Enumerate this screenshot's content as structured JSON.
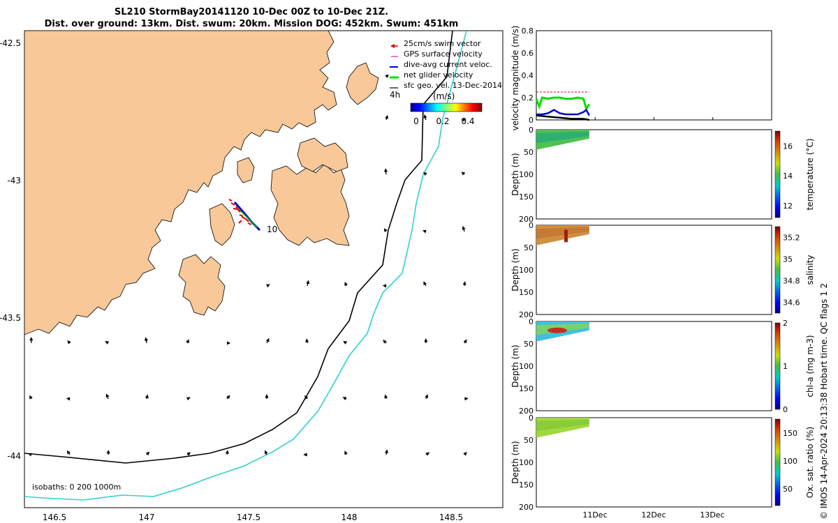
{
  "header": {
    "title_line1": "SL210 StormBay20141120 10-Dec 00Z to 10-Dec 21Z.",
    "title_line2": "Dist. over ground: 13km. Dist. swum: 20km. Mission DOG: 452km. Swum: 451km"
  },
  "map": {
    "legend": [
      {
        "label": "25cm/s swim vector",
        "color": "#e00000"
      },
      {
        "label": "GPS surface velocity",
        "color": "#e040e0"
      },
      {
        "label": "dive-avg current veloc.",
        "color": "#0000d0"
      },
      {
        "label": "net glider velocity",
        "color": "#00e000"
      },
      {
        "label": "sfc geo. vel. 13-Dec-2014",
        "color": "#000000"
      }
    ],
    "legend_extra": "4h",
    "colorbar_unit": "(m/s)",
    "colorbar_ticks": [
      "0",
      "0.2",
      "0.4"
    ],
    "x_ticks": [
      "146.5",
      "147",
      "147.5",
      "148",
      "148.5"
    ],
    "y_ticks": [
      "-42.5",
      "-43",
      "-43.5",
      "-44"
    ],
    "glider_label": "10",
    "isobath_note": "isobaths: 0   200  1000m",
    "land_color": "#f8c898"
  },
  "chart_data": [
    {
      "type": "line",
      "ylabel": "velocity magnitude (m/s)",
      "ylim": [
        0,
        0.8
      ],
      "y_ticks": [
        "0",
        "0.2",
        "0.4",
        "0.6",
        "0.8"
      ],
      "x_day_ticks": [
        "11Dec",
        "12Dec",
        "13Dec"
      ],
      "series": [
        {
          "color": "#00e000",
          "x": [
            10.0,
            10.05,
            10.1,
            10.2,
            10.3,
            10.4,
            10.5,
            10.6,
            10.7,
            10.8,
            10.85,
            10.9
          ],
          "y": [
            0.19,
            0.12,
            0.2,
            0.19,
            0.2,
            0.2,
            0.19,
            0.19,
            0.2,
            0.19,
            0.1,
            0.14
          ]
        },
        {
          "color": "#0000d0",
          "x": [
            10.0,
            10.1,
            10.2,
            10.3,
            10.4,
            10.5,
            10.6,
            10.7,
            10.8,
            10.85,
            10.9
          ],
          "y": [
            0.05,
            0.05,
            0.06,
            0.09,
            0.06,
            0.05,
            0.05,
            0.05,
            0.07,
            0.09,
            0.04
          ]
        },
        {
          "color": "#000000",
          "x": [
            10.0,
            10.2,
            10.4,
            10.6,
            10.8,
            10.9
          ],
          "y": [
            0.04,
            0.03,
            0.02,
            0.01,
            0.01,
            0.0
          ]
        },
        {
          "color": "#e00000",
          "x": [
            10.0,
            10.3,
            10.6,
            10.9
          ],
          "y": [
            0.25,
            0.25,
            0.25,
            0.25
          ]
        }
      ]
    },
    {
      "type": "heatmap",
      "ylabel": "Depth (m)",
      "ylim": [
        200,
        0
      ],
      "y_ticks": [
        "0",
        "50",
        "100",
        "150",
        "200"
      ],
      "colorbar_label": "temperature (°C)",
      "colorbar_ticks": [
        "12",
        "14",
        "16"
      ],
      "clim": [
        11.2,
        17
      ]
    },
    {
      "type": "heatmap",
      "ylabel": "Depth (m)",
      "ylim": [
        200,
        0
      ],
      "y_ticks": [
        "0",
        "50",
        "100",
        "150",
        "200"
      ],
      "colorbar_label": "salinity",
      "colorbar_ticks": [
        "34.6",
        "34.8",
        "35",
        "35.2"
      ],
      "clim": [
        34.5,
        35.3
      ]
    },
    {
      "type": "heatmap",
      "ylabel": "Depth (m)",
      "ylim": [
        200,
        0
      ],
      "y_ticks": [
        "0",
        "50",
        "100",
        "150",
        "200"
      ],
      "colorbar_label": "chl-a (mg m-3)",
      "colorbar_ticks": [
        "0",
        "1",
        "2"
      ],
      "clim": [
        0,
        2
      ]
    },
    {
      "type": "heatmap",
      "ylabel": "Depth (m)",
      "ylim": [
        200,
        0
      ],
      "y_ticks": [
        "0",
        "50",
        "100",
        "150",
        "200"
      ],
      "colorbar_label": "Ox. sat. ratio (%)",
      "colorbar_ticks": [
        "50",
        "100",
        "150"
      ],
      "clim": [
        20,
        175
      ]
    }
  ],
  "footer": {
    "side_note": "© IMOS 14-Apr-2024 20:13:38 Hobart time. QC flags 1  2"
  }
}
